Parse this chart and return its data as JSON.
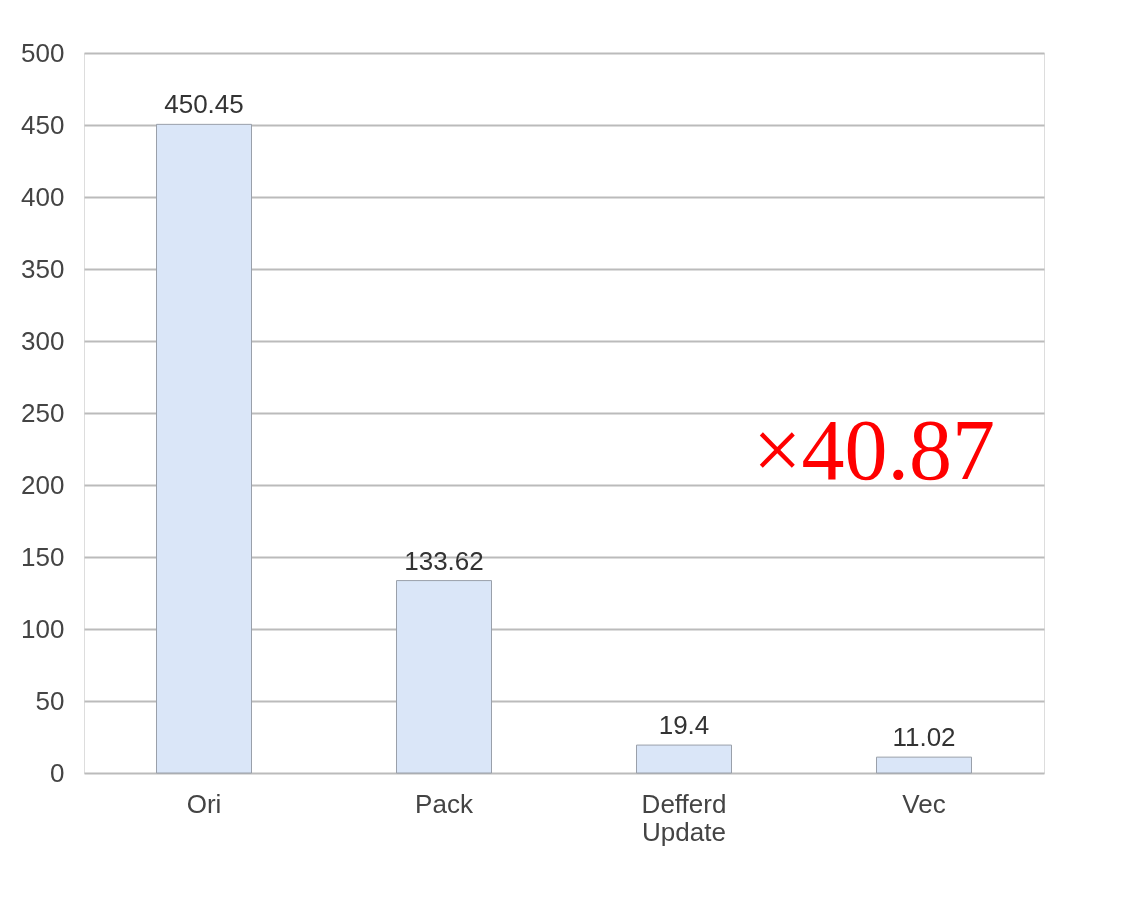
{
  "chart_data": {
    "type": "bar",
    "categories": [
      "Ori",
      "Pack",
      "Defferd Update",
      "Vec"
    ],
    "values": [
      450.45,
      133.62,
      19.4,
      11.02
    ],
    "color": "#dae6f8",
    "ylim": [
      0,
      500
    ],
    "yticks": [
      0,
      50,
      100,
      150,
      200,
      250,
      300,
      350,
      400,
      450,
      500
    ],
    "grid": "y",
    "data_labels": true,
    "annotations": [
      "×40.87"
    ]
  }
}
